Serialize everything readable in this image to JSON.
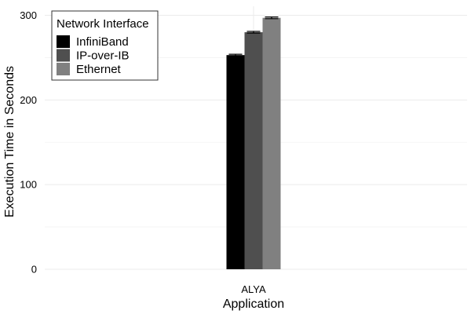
{
  "chart_data": {
    "type": "bar",
    "categories": [
      "ALYA"
    ],
    "series": [
      {
        "name": "InfiniBand",
        "values": [
          253
        ],
        "error": [
          1
        ],
        "color": "#000000"
      },
      {
        "name": "IP-over-IB",
        "values": [
          280
        ],
        "error": [
          1
        ],
        "color": "#4f4f4f"
      },
      {
        "name": "Ethernet",
        "values": [
          297
        ],
        "error": [
          1
        ],
        "color": "#808080"
      }
    ],
    "title": "",
    "xlabel": "Application",
    "ylabel": "Execution Time in Seconds",
    "ylim": [
      0,
      300
    ],
    "yticks": [
      0,
      100,
      200,
      300
    ],
    "grid": true,
    "legend": {
      "title": "Network Interface",
      "position": "top-left"
    }
  }
}
